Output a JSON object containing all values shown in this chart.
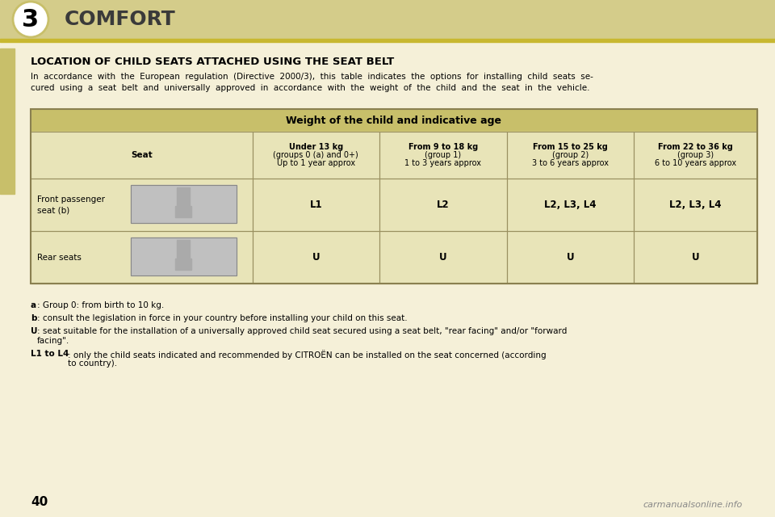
{
  "bg_color": "#f5f0d8",
  "page_bg": "#f0ebe8",
  "header_bg": "#d4cc8a",
  "header_text_color": "#2a2a2a",
  "title_text": "COMFORT",
  "chapter_num": "3",
  "section_title": "LOCATION OF CHILD SEATS ATTACHED USING THE SEAT BELT",
  "intro_text": "In  accordance  with  the  European  regulation  (Directive  2000/3),  this  table  indicates  the  options  for  installing  child  seats  se-\ncured  using  a  seat  belt  and  universally  approved  in  accordance  with  the  weight  of  the  child  and  the  seat  in  the  vehicle.",
  "table_header_bg": "#c8bf6a",
  "table_row_bg": "#e8e4b8",
  "table_header_title": "Weight of the child and indicative age",
  "col_headers": [
    "Seat",
    "Under 13 kg\n(groups 0 (a) and 0+)\nUp to 1 year approx",
    "From 9 to 18 kg\n(group 1)\n1 to 3 years approx",
    "From 15 to 25 kg\n(group 2)\n3 to 6 years approx",
    "From 22 to 36 kg\n(group 3)\n6 to 10 years approx"
  ],
  "row1_label": "Front passenger\nseat (b)",
  "row1_values": [
    "L1",
    "L2",
    "L2, L3, L4",
    "L2, L3, L4"
  ],
  "row2_label": "Rear seats",
  "row2_values": [
    "U",
    "U",
    "U",
    "U"
  ],
  "footnotes": [
    [
      "a",
      ": Group 0: from birth to 10 kg."
    ],
    [
      "b",
      ": consult the legislation in force in your country before installing your child on this seat."
    ],
    [
      "U",
      ": seat suitable for the installation of a universally approved child seat secured using a seat belt, \"rear facing\" and/or \"forward\n    facing\"."
    ],
    [
      "L1 to L4",
      ": only the child seats indicated and recommended by CITROËN can be installed on the seat concerned (according\n    to country)."
    ]
  ],
  "page_number": "40",
  "watermark": "carmanualsonline.info"
}
